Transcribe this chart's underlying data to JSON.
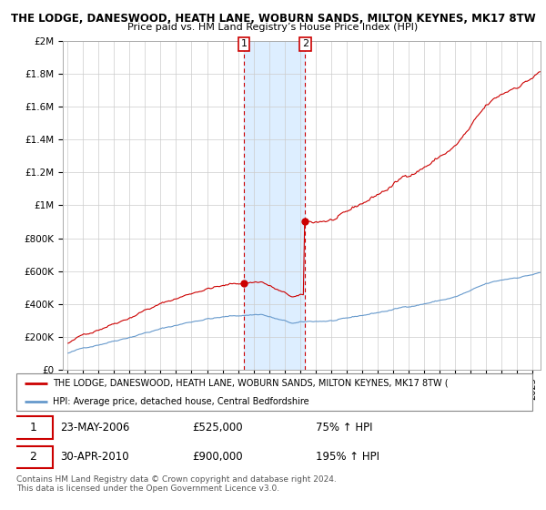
{
  "title": "THE LODGE, DANESWOOD, HEATH LANE, WOBURN SANDS, MILTON KEYNES, MK17 8TW",
  "subtitle": "Price paid vs. HM Land Registry’s House Price Index (HPI)",
  "legend_line1": "THE LODGE, DANESWOOD, HEATH LANE, WOBURN SANDS, MILTON KEYNES, MK17 8TW (",
  "legend_line2": "HPI: Average price, detached house, Central Bedfordshire",
  "sale1_date": "23-MAY-2006",
  "sale1_price": 525000,
  "sale1_pct": "75%",
  "sale2_date": "30-APR-2010",
  "sale2_price": 900000,
  "sale2_pct": "195%",
  "copyright": "Contains HM Land Registry data © Crown copyright and database right 2024.\nThis data is licensed under the Open Government Licence v3.0.",
  "red_color": "#cc0000",
  "blue_color": "#6699cc",
  "shade_color": "#ddeeff",
  "ylim": [
    0,
    2000000
  ],
  "sale1_x": 2006.38,
  "sale2_x": 2010.33
}
